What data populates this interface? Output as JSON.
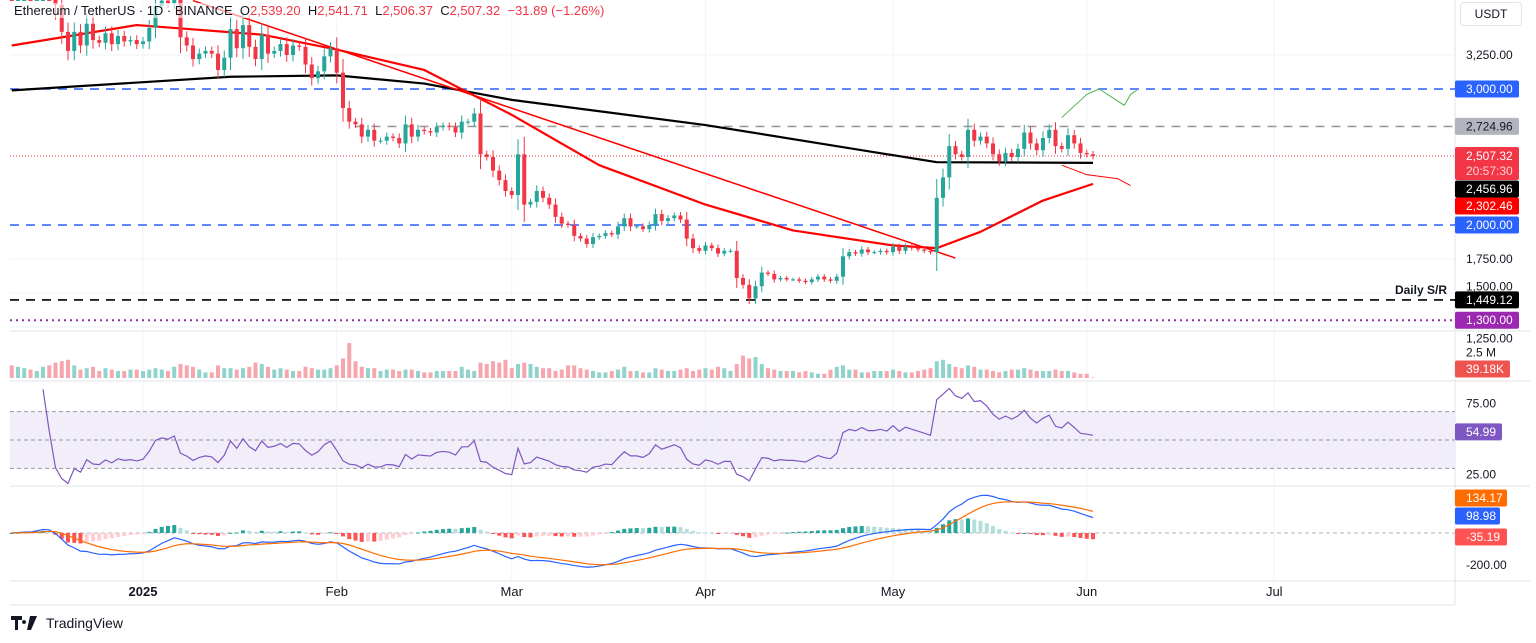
{
  "header": {
    "symbol": "Ethereum / TetherUS · 1D · BINANCE",
    "o_label": "O",
    "o": "2,539.20",
    "h_label": "H",
    "h": "2,541.71",
    "l_label": "L",
    "l": "2,506.37",
    "c_label": "C",
    "c": "2,507.32",
    "change": "−31.89 (−1.26%)"
  },
  "axis_unit": "USDT",
  "footer": {
    "brand": "TradingView"
  },
  "colors": {
    "up": "#26a69a",
    "down": "#f23645",
    "ma50": "#ff0000",
    "ma200": "#000000",
    "level_blue": "#2962ff",
    "rsi": "#7e57c2",
    "macd": "#2962ff",
    "signal": "#ff6d00"
  },
  "chart_data": {
    "type": "candlestick",
    "title": "Ethereum / TetherUS · 1D · BINANCE",
    "price_ticks": [
      "3,250.00",
      "1,750.00",
      "1,500.00",
      "1,250.00"
    ],
    "price_tick_values": [
      3250,
      1750,
      1500,
      1250
    ],
    "time_ticks": [
      {
        "label": "2025",
        "date": "2025-01-01",
        "bold": true
      },
      {
        "label": "Feb",
        "date": "2025-02-01"
      },
      {
        "label": "Mar",
        "date": "2025-03-01"
      },
      {
        "label": "Apr",
        "date": "2025-04-01"
      },
      {
        "label": "May",
        "date": "2025-05-01"
      },
      {
        "label": "Jun",
        "date": "2025-06-01"
      },
      {
        "label": "Jul",
        "date": "2025-07-01"
      }
    ],
    "candles": [
      {
        "month": "2024-12",
        "first_day": 11,
        "close": [
          3850,
          3880,
          3900,
          3870,
          3960,
          4000,
          3890,
          3620,
          3420,
          3280,
          3420,
          3320,
          3480,
          3360,
          3340,
          3410,
          3330,
          3390,
          3350,
          3360,
          3330
        ],
        "volume": [
          0.9,
          0.8,
          0.7,
          0.6,
          0.5,
          0.8,
          0.9,
          1.1,
          1.2,
          1.3,
          0.9,
          0.6,
          0.7,
          0.8,
          0.5,
          0.7,
          0.6,
          0.5,
          0.5,
          0.6,
          0.6
        ]
      },
      {
        "month": "2025-01",
        "first_day": 1,
        "close": [
          3350,
          3450,
          3610,
          3650,
          3630,
          3680,
          3380,
          3320,
          3220,
          3260,
          3280,
          3260,
          3140,
          3230,
          3440,
          3300,
          3470,
          3310,
          3220,
          3400,
          3260,
          3280,
          3330,
          3250,
          3320,
          3310,
          3180,
          3080,
          3130,
          3240,
          3300
        ],
        "volume": [
          0.5,
          0.6,
          0.7,
          0.6,
          0.5,
          0.8,
          1.0,
          0.9,
          0.8,
          0.6,
          0.4,
          0.4,
          0.9,
          0.7,
          0.7,
          0.6,
          0.7,
          0.8,
          1.1,
          1.0,
          0.8,
          0.6,
          0.7,
          0.6,
          0.5,
          0.5,
          0.8,
          0.7,
          0.6,
          0.6,
          0.7
        ]
      },
      {
        "month": "2025-02",
        "first_day": 1,
        "close": [
          3120,
          2860,
          2760,
          2740,
          2650,
          2700,
          2620,
          2620,
          2650,
          2640,
          2600,
          2740,
          2650,
          2700,
          2690,
          2680,
          2720,
          2730,
          2720,
          2680,
          2760,
          2760,
          2820,
          2520,
          2500,
          2400,
          2330,
          2250
        ],
        "volume": [
          0.9,
          1.4,
          2.5,
          1.2,
          0.8,
          0.7,
          0.7,
          0.5,
          0.6,
          0.6,
          0.5,
          0.6,
          0.6,
          0.5,
          0.4,
          0.4,
          0.5,
          0.5,
          0.5,
          0.5,
          0.8,
          0.6,
          0.5,
          1.1,
          1.0,
          1.2,
          1.1,
          1.3
        ]
      },
      {
        "month": "2025-03",
        "first_day": 1,
        "close": [
          2220,
          2520,
          2150,
          2170,
          2250,
          2200,
          2150,
          2060,
          2010,
          2000,
          1920,
          1900,
          1860,
          1910,
          1920,
          1940,
          1930,
          1990,
          2050,
          1990,
          1990,
          1970,
          2000,
          2080,
          2030,
          2050,
          2070,
          2040,
          1900,
          1830,
          1810
        ],
        "volume": [
          0.7,
          1.0,
          1.1,
          1.0,
          0.8,
          0.7,
          0.7,
          0.5,
          0.6,
          0.9,
          0.9,
          0.7,
          0.6,
          0.5,
          0.4,
          0.4,
          0.5,
          0.6,
          0.8,
          0.5,
          0.5,
          0.4,
          0.4,
          0.7,
          0.6,
          0.5,
          0.5,
          0.6,
          0.7,
          0.5,
          0.6
        ]
      },
      {
        "month": "2025-04",
        "first_day": 1,
        "close": [
          1850,
          1830,
          1790,
          1810,
          1810,
          1610,
          1560,
          1460,
          1550,
          1650,
          1640,
          1600,
          1610,
          1600,
          1600,
          1590,
          1580,
          1600,
          1620,
          1600,
          1590,
          1620,
          1770,
          1800,
          1790,
          1820,
          1800,
          1800,
          1810,
          1800
        ],
        "volume": [
          0.7,
          0.6,
          0.8,
          0.7,
          0.5,
          1.0,
          1.6,
          1.4,
          1.5,
          1.0,
          0.7,
          0.6,
          0.5,
          0.5,
          0.5,
          0.4,
          0.5,
          0.4,
          0.3,
          0.3,
          0.6,
          0.8,
          0.9,
          0.6,
          0.6,
          0.4,
          0.4,
          0.5,
          0.5,
          0.5
        ]
      },
      {
        "month": "2025-05",
        "first_day": 1,
        "close": [
          1840,
          1810,
          1840,
          1830,
          1820,
          1810,
          1800,
          2200,
          2350,
          2580,
          2520,
          2500,
          2700,
          2620,
          2650,
          2600,
          2520,
          2470,
          2530,
          2500,
          2560,
          2680,
          2600,
          2550,
          2640,
          2700,
          2580,
          2560,
          2660,
          2600,
          2530
        ],
        "volume": [
          0.6,
          0.5,
          0.4,
          0.4,
          0.5,
          0.6,
          0.7,
          1.2,
          1.3,
          1.0,
          0.8,
          0.7,
          0.9,
          0.8,
          0.6,
          0.6,
          0.5,
          0.4,
          0.5,
          0.6,
          0.6,
          0.7,
          0.6,
          0.5,
          0.5,
          0.5,
          0.6,
          0.5,
          0.5,
          0.4,
          0.3
        ]
      },
      {
        "month": "2025-06",
        "first_day": 1,
        "close": [
          2520,
          2507.32
        ],
        "volume": [
          0.3,
          0.04
        ]
      }
    ],
    "ma200": [
      [
        "2024-12-11",
        2990
      ],
      [
        "2025-01-15",
        3090
      ],
      [
        "2025-02-01",
        3100
      ],
      [
        "2025-02-15",
        3040
      ],
      [
        "2025-03-01",
        2920
      ],
      [
        "2025-04-01",
        2735
      ],
      [
        "2025-04-26",
        2550
      ],
      [
        "2025-05-08",
        2462
      ],
      [
        "2025-06-02",
        2456.96
      ]
    ],
    "ma50": [
      [
        "2024-12-11",
        3320
      ],
      [
        "2024-12-31",
        3470
      ],
      [
        "2025-01-20",
        3400
      ],
      [
        "2025-02-01",
        3290
      ],
      [
        "2025-02-15",
        3140
      ],
      [
        "2025-03-01",
        2810
      ],
      [
        "2025-03-15",
        2440
      ],
      [
        "2025-04-01",
        2150
      ],
      [
        "2025-04-15",
        1960
      ],
      [
        "2025-05-01",
        1850
      ],
      [
        "2025-05-08",
        1830
      ],
      [
        "2025-05-15",
        1950
      ],
      [
        "2025-05-25",
        2180
      ],
      [
        "2025-06-02",
        2302.46
      ]
    ],
    "trendline": [
      [
        "2025-01-09",
        3650
      ],
      [
        "2025-05-11",
        1757
      ]
    ],
    "projection_up": [
      [
        "2025-05-28",
        2790
      ],
      [
        "2025-06-01",
        2960
      ],
      [
        "2025-06-03",
        3000
      ],
      [
        "2025-06-07",
        2880
      ],
      [
        "2025-06-08",
        2960
      ],
      [
        "2025-06-09",
        2990
      ]
    ],
    "projection_down": [
      [
        "2025-05-28",
        2440
      ],
      [
        "2025-06-01",
        2370
      ],
      [
        "2025-06-06",
        2340
      ],
      [
        "2025-06-08",
        2290
      ]
    ],
    "levels": [
      {
        "value": 3000,
        "label": "3,000.00",
        "color": "#2962ff",
        "style": "dashed"
      },
      {
        "value": 2724.96,
        "label": "2,724.96",
        "color": "#9e9e9e",
        "style": "dashed",
        "from": "2025-02-04"
      },
      {
        "value": 2000,
        "label": "2,000.00",
        "color": "#2962ff",
        "style": "dashed"
      },
      {
        "value": 1449.12,
        "label": "1,449.12",
        "color": "#000000",
        "style": "dashed",
        "text": "Daily S/R"
      },
      {
        "value": 1300,
        "label": "1,300.00",
        "color": "#9c27b0",
        "style": "dotted"
      }
    ],
    "last_price": {
      "value": 2507.32,
      "label": "2,507.32",
      "countdown": "20:57:30"
    },
    "ma200_label": "2,456.96",
    "ma50_label": "2,302.46",
    "volume": {
      "tick": "2.5 M",
      "tick_value": 2.5,
      "last_label": "39.18K",
      "unit": "M"
    },
    "rsi": {
      "period": 14,
      "ticks": [
        "75.00",
        "25.00"
      ],
      "tick_values": [
        75,
        25
      ],
      "bands": [
        70,
        50,
        30
      ],
      "last_label": "54.99"
    },
    "macd": {
      "fast": 12,
      "slow": 26,
      "signal": 9,
      "ticks": [
        "-200.00"
      ],
      "tick_values": [
        -200
      ],
      "signal_label": "134.17",
      "macd_label": "98.98",
      "hist_label": "-35.19"
    }
  }
}
